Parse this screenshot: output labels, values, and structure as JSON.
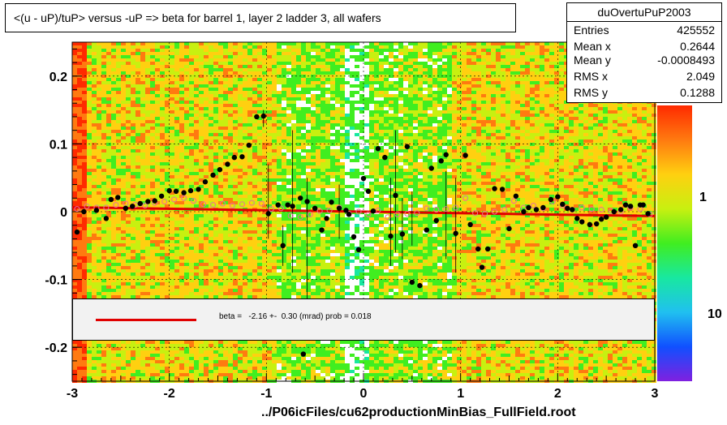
{
  "title": "<(u - uP)/tuP> versus  -uP => beta for barrel 1, layer 2 ladder 3, all wafers",
  "stats": {
    "name": "duOvertuPuP2003",
    "rows": [
      {
        "key": "Entries",
        "value": "425552"
      },
      {
        "key": "Mean x",
        "value": "0.2644"
      },
      {
        "key": "Mean y",
        "value": "-0.0008493"
      },
      {
        "key": "RMS x",
        "value": "2.049"
      },
      {
        "key": "RMS y",
        "value": "0.1288"
      }
    ]
  },
  "fit": {
    "text": "beta =   -2.16 +-  0.30 (mrad) prob = 0.018",
    "color": "#e00000"
  },
  "footer": "../P06icFiles/cu62productionMinBias_FullField.root",
  "chart_data": {
    "type": "scatter",
    "title": "<(u - uP)/tuP> versus  -uP => beta for barrel 1, layer 2 ladder 3, all wafers",
    "xlim": [
      -3,
      3
    ],
    "ylim": [
      -0.25,
      0.25
    ],
    "x_ticks": [
      {
        "value": -3,
        "label": "-3"
      },
      {
        "value": -2,
        "label": "-2"
      },
      {
        "value": -1,
        "label": "-1"
      },
      {
        "value": 0,
        "label": "0"
      },
      {
        "value": 1,
        "label": "1"
      },
      {
        "value": 2,
        "label": "2"
      },
      {
        "value": 3,
        "label": "3"
      }
    ],
    "y_ticks": [
      {
        "value": -0.2,
        "label": "-0.2"
      },
      {
        "value": -0.1,
        "label": "-0.1"
      },
      {
        "value": 0,
        "label": "0"
      },
      {
        "value": 0.1,
        "label": "0.1"
      },
      {
        "value": 0.2,
        "label": "0.2"
      }
    ],
    "z_ticks": [
      {
        "label": "1",
        "value": 1
      },
      {
        "label": "10",
        "value": 10
      }
    ],
    "grid": true,
    "heatmap_colors": [
      "#ff2a00",
      "#ff7a10",
      "#ffd010",
      "#c8f010",
      "#40ee20",
      "#18e8a0",
      "#20c0f0",
      "#1050ff",
      "#8020e0"
    ],
    "series": [
      {
        "marker": "filled-circle",
        "color": "#000000",
        "x": [
          -2.95,
          -2.88,
          -2.75,
          -2.65,
          -2.6,
          -2.53,
          -2.45,
          -2.38,
          -2.3,
          -2.22,
          -2.15,
          -2.08,
          -2.0,
          -1.93,
          -1.85,
          -1.78,
          -1.7,
          -1.63,
          -1.55,
          -1.48,
          -1.4,
          -1.33,
          -1.25,
          -1.18,
          -1.1,
          -1.03,
          -0.98,
          -0.88,
          -0.83,
          -0.78,
          -0.73,
          -0.65,
          -0.62,
          -0.58,
          -0.5,
          -0.43,
          -0.38,
          -0.33,
          -0.25,
          -0.18,
          -0.15,
          -0.1,
          -0.05,
          0.0,
          0.05,
          0.1,
          0.15,
          0.22,
          0.28,
          0.33,
          0.4,
          0.45,
          0.5,
          0.58,
          0.65,
          0.7,
          0.75,
          0.8,
          0.85,
          0.95,
          1.05,
          1.1,
          1.18,
          1.22,
          1.28,
          1.35,
          1.43,
          1.5,
          1.57,
          1.65,
          1.7,
          1.78,
          1.85,
          1.93,
          2.0,
          2.05,
          2.1,
          2.15,
          2.2,
          2.25,
          2.33,
          2.4,
          2.45,
          2.5,
          2.58,
          2.65,
          2.7,
          2.75,
          2.8,
          2.85,
          2.88,
          2.93
        ],
        "y": [
          -0.03,
          0.0,
          0.002,
          -0.01,
          0.018,
          0.021,
          0.005,
          0.008,
          0.012,
          0.015,
          0.016,
          0.023,
          0.031,
          0.03,
          0.028,
          0.031,
          0.033,
          0.044,
          0.054,
          0.062,
          0.07,
          0.08,
          0.081,
          0.098,
          0.14,
          0.141,
          -0.003,
          0.01,
          -0.05,
          0.01,
          0.008,
          0.02,
          -0.21,
          0.015,
          0.005,
          -0.027,
          -0.01,
          0.014,
          0.005,
          0.002,
          -0.004,
          -0.037,
          -0.056,
          0.049,
          0.03,
          0.001,
          0.093,
          0.08,
          -0.036,
          0.024,
          -0.033,
          0.096,
          -0.104,
          -0.109,
          -0.027,
          0.064,
          -0.013,
          0.075,
          0.084,
          -0.032,
          0.083,
          -0.019,
          -0.055,
          -0.082,
          -0.055,
          0.034,
          0.033,
          -0.025,
          0.023,
          0.0,
          0.006,
          0.003,
          0.006,
          0.018,
          0.022,
          0.011,
          0.005,
          0.003,
          -0.01,
          -0.015,
          -0.019,
          -0.018,
          -0.011,
          -0.008,
          0.0,
          0.003,
          0.01,
          0.008,
          -0.05,
          0.01,
          0.01,
          -0.003
        ]
      },
      {
        "marker": "open-circle",
        "color": "#e8709a",
        "x": [
          -2.95,
          -2.85,
          -2.75,
          -2.65,
          -2.55,
          -2.45,
          -2.35,
          -2.25,
          -2.15,
          -2.05,
          -1.95,
          -1.85,
          -1.75,
          -1.65,
          -1.55,
          -1.45,
          -1.35,
          -1.25,
          -1.15,
          -1.05,
          -0.95,
          -0.85,
          -0.75,
          -0.65,
          -0.55,
          -0.45,
          -0.35,
          -0.25,
          -0.15,
          -0.05,
          0.05,
          0.15,
          0.25,
          0.35,
          0.45,
          0.55,
          0.65,
          0.75,
          0.85,
          0.95,
          1.05,
          1.15,
          1.25,
          1.35,
          1.45,
          1.55,
          1.65,
          1.75,
          1.85,
          1.95,
          2.05,
          2.15,
          2.25,
          2.35,
          2.45,
          2.55,
          2.65,
          2.75,
          2.85,
          2.95
        ],
        "y": [
          0.004,
          0.008,
          0.006,
          0.006,
          0.01,
          0.012,
          0.01,
          0.009,
          0.013,
          0.015,
          0.018,
          0.02,
          0.016,
          0.011,
          0.01,
          0.012,
          0.009,
          0.011,
          0.013,
          0.012,
          0.004,
          0.005,
          -0.006,
          -0.008,
          -0.004,
          0.001,
          0.002,
          0.006,
          -0.003,
          0.0,
          -0.004,
          0.002,
          -0.008,
          -0.004,
          -0.003,
          -0.002,
          0.005,
          0.003,
          0.004,
          0.006,
          0.02,
          -0.002,
          -0.003,
          0.0,
          0.003,
          0.016,
          0.006,
          0.009,
          0.005,
          0.015,
          0.009,
          0.003,
          0.006,
          0.004,
          0.003,
          0.001,
          0.0,
          0.006,
          0.004,
          -0.004
        ]
      },
      {
        "type": "line",
        "name": "fit",
        "color": "#e00000",
        "x": [
          -3,
          3
        ],
        "y": [
          0.0065,
          -0.0065
        ]
      }
    ]
  }
}
